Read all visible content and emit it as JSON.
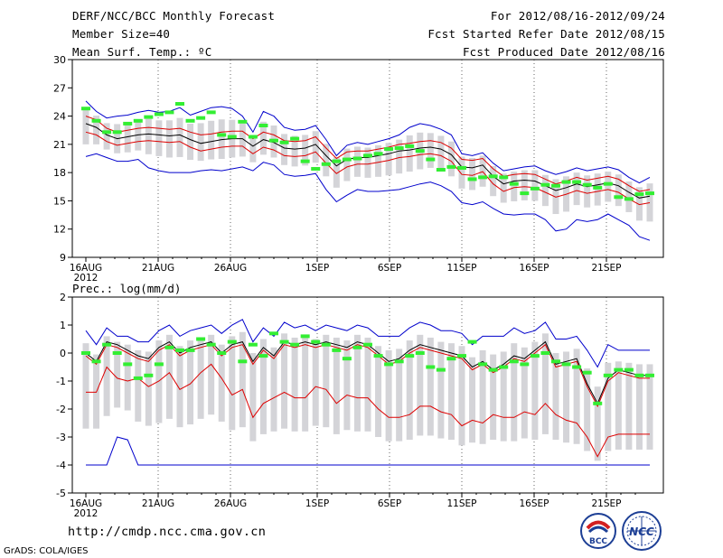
{
  "header": {
    "title": "DERF/NCC/BCC Monthly Forecast",
    "member_size": "Member Size=40",
    "variable": "Mean Surf. Temp.: ºC",
    "forecast_period": "For 2012/08/16-2012/09/24",
    "start_date": "Fcst Started Refer Date 2012/08/15",
    "produced_date": "Fcst Produced Date 2012/08/16"
  },
  "footer": {
    "url": "http://cmdp.ncc.cma.gov.cn",
    "credit": "GrADS: COLA/IGES",
    "logo_left_text": "BCC",
    "logo_right_text": "NCC"
  },
  "colors": {
    "mean_line": "#000000",
    "spread_line": "#dd0000",
    "range_line": "#0000cc",
    "member_box": "#d4d4d8",
    "marker": "#33ee33"
  },
  "chart_data": [
    {
      "type": "box",
      "title": "Mean Surf. Temp.: ºC",
      "x_tick_labels": [
        "16AUG",
        "21AUG",
        "26AUG",
        "1SEP",
        "6SEP",
        "11SEP",
        "16SEP",
        "21SEP"
      ],
      "x_tick_days": [
        0,
        5,
        10,
        16,
        21,
        26,
        31,
        36
      ],
      "x_year_label": "2012",
      "ylim": [
        9,
        30
      ],
      "y_ticks": [
        9,
        12,
        15,
        18,
        21,
        24,
        27,
        30
      ],
      "days": 39,
      "series": [
        {
          "name": "ensemble mean",
          "values": [
            23.2,
            22.8,
            22.0,
            21.6,
            21.8,
            22.0,
            22.1,
            22.0,
            21.9,
            22.0,
            21.5,
            21.1,
            21.3,
            21.5,
            21.6,
            21.6,
            20.8,
            21.5,
            21.2,
            20.6,
            20.5,
            20.6,
            21.0,
            19.8,
            18.7,
            19.4,
            19.6,
            19.6,
            19.8,
            20.0,
            20.3,
            20.4,
            20.6,
            20.7,
            20.5,
            19.9,
            18.6,
            18.5,
            18.8,
            17.6,
            16.8,
            17.1,
            17.2,
            17.1,
            16.6,
            16.1,
            16.4,
            16.8,
            16.5,
            16.7,
            16.9,
            16.6,
            15.9,
            15.3,
            15.5
          ]
        },
        {
          "name": "upper spread",
          "values": [
            24.0,
            23.6,
            22.7,
            22.3,
            22.5,
            22.7,
            22.8,
            22.7,
            22.6,
            22.7,
            22.3,
            22.0,
            22.1,
            22.3,
            22.4,
            22.4,
            21.6,
            22.3,
            22.0,
            21.4,
            21.3,
            21.4,
            21.8,
            20.6,
            19.5,
            20.2,
            20.3,
            20.3,
            20.5,
            20.7,
            21.0,
            21.1,
            21.3,
            21.4,
            21.2,
            20.6,
            19.4,
            19.3,
            19.5,
            18.4,
            17.6,
            17.8,
            17.9,
            17.8,
            17.3,
            16.8,
            17.1,
            17.5,
            17.2,
            17.4,
            17.6,
            17.3,
            16.6,
            16.0,
            16.2
          ]
        },
        {
          "name": "lower spread",
          "values": [
            22.3,
            22.0,
            21.3,
            20.9,
            21.1,
            21.3,
            21.4,
            21.3,
            21.2,
            21.3,
            20.7,
            20.3,
            20.5,
            20.7,
            20.8,
            20.8,
            20.0,
            20.7,
            20.4,
            19.8,
            19.7,
            19.8,
            20.2,
            19.0,
            17.9,
            18.6,
            18.9,
            18.9,
            19.1,
            19.3,
            19.6,
            19.7,
            19.9,
            20.0,
            19.8,
            19.2,
            17.8,
            17.7,
            18.1,
            16.8,
            16.0,
            16.4,
            16.5,
            16.4,
            15.9,
            15.4,
            15.7,
            16.1,
            15.8,
            16.0,
            16.2,
            15.9,
            15.2,
            14.6,
            14.8
          ]
        },
        {
          "name": "ensemble max",
          "values": [
            25.6,
            24.5,
            23.8,
            24.0,
            24.1,
            24.4,
            24.6,
            24.4,
            24.5,
            24.9,
            24.1,
            24.5,
            24.9,
            25.0,
            24.8,
            24.0,
            22.3,
            24.5,
            24.0,
            22.8,
            22.5,
            22.6,
            23.0,
            21.5,
            19.8,
            20.9,
            21.2,
            21.0,
            21.3,
            21.6,
            22.0,
            22.8,
            23.2,
            23.0,
            22.6,
            22.0,
            20.0,
            19.8,
            20.1,
            19.0,
            18.2,
            18.4,
            18.6,
            18.7,
            18.2,
            17.8,
            18.1,
            18.5,
            18.2,
            18.4,
            18.6,
            18.3,
            17.5,
            16.9,
            17.5
          ]
        },
        {
          "name": "ensemble min",
          "values": [
            19.7,
            20.0,
            19.6,
            19.2,
            19.2,
            19.4,
            18.5,
            18.2,
            18.0,
            18.0,
            18.0,
            18.2,
            18.3,
            18.2,
            18.4,
            18.6,
            18.2,
            19.1,
            18.8,
            17.8,
            17.6,
            17.7,
            17.9,
            16.2,
            14.9,
            15.6,
            16.2,
            16.0,
            16.0,
            16.1,
            16.2,
            16.5,
            16.8,
            17.0,
            16.6,
            16.0,
            14.8,
            14.6,
            14.9,
            14.2,
            13.6,
            13.5,
            13.6,
            13.6,
            13.0,
            11.8,
            12.0,
            13.0,
            12.8,
            13.0,
            13.6,
            13.0,
            12.4,
            11.2,
            10.8
          ]
        },
        {
          "name": "observed marker",
          "values": [
            24.8,
            23.5,
            22.3,
            22.3,
            23.2,
            23.5,
            23.9,
            24.2,
            24.4,
            25.3,
            23.5,
            23.8,
            24.4,
            22.0,
            21.8,
            23.4,
            21.8,
            23.0,
            21.4,
            21.2,
            21.6,
            19.2,
            18.4,
            18.9,
            19.2,
            19.4,
            19.5,
            19.8,
            20.0,
            20.5,
            20.6,
            20.8,
            20.3,
            19.4,
            18.3,
            18.6,
            18.5,
            17.3,
            17.5,
            17.6,
            17.5,
            16.8,
            15.8,
            16.3,
            16.7,
            16.6,
            17.0,
            17.0,
            16.7,
            16.4,
            16.8,
            15.4,
            15.2,
            15.7,
            15.8
          ]
        }
      ]
    },
    {
      "type": "box",
      "title": "Prec.: log(mm/d)",
      "x_tick_labels": [
        "16AUG",
        "21AUG",
        "26AUG",
        "1SEP",
        "6SEP",
        "11SEP",
        "16SEP",
        "21SEP"
      ],
      "x_tick_days": [
        0,
        5,
        10,
        16,
        21,
        26,
        31,
        36
      ],
      "x_year_label": "2012",
      "ylim": [
        -5,
        2
      ],
      "y_ticks": [
        -5,
        -4,
        -3,
        -2,
        -1,
        0,
        1,
        2
      ],
      "days": 39,
      "series": [
        {
          "name": "ensemble mean",
          "values": [
            0.0,
            -0.3,
            0.4,
            0.3,
            0.1,
            -0.1,
            -0.2,
            0.2,
            0.4,
            0.0,
            0.2,
            0.3,
            0.4,
            0.0,
            0.3,
            0.4,
            -0.3,
            0.2,
            -0.1,
            0.4,
            0.3,
            0.4,
            0.3,
            0.4,
            0.3,
            0.2,
            0.4,
            0.3,
            0.0,
            -0.3,
            -0.2,
            0.1,
            0.3,
            0.2,
            0.1,
            0.0,
            -0.1,
            -0.5,
            -0.3,
            -0.6,
            -0.4,
            -0.1,
            -0.2,
            0.1,
            0.4,
            -0.4,
            -0.3,
            -0.2,
            -1.1,
            -1.8,
            -0.9,
            -0.6,
            -0.7,
            -0.8,
            -0.8
          ]
        },
        {
          "name": "upper spread",
          "values": [
            -0.1,
            -0.4,
            0.3,
            0.2,
            0.0,
            -0.2,
            -0.3,
            0.1,
            0.3,
            -0.1,
            0.1,
            0.2,
            0.3,
            -0.1,
            0.2,
            0.3,
            -0.4,
            0.1,
            -0.2,
            0.3,
            0.2,
            0.3,
            0.2,
            0.3,
            0.2,
            0.1,
            0.3,
            0.2,
            -0.1,
            -0.4,
            -0.3,
            0.0,
            0.2,
            0.1,
            0.0,
            -0.1,
            -0.2,
            -0.6,
            -0.4,
            -0.7,
            -0.5,
            -0.2,
            -0.3,
            0.0,
            0.3,
            -0.5,
            -0.4,
            -0.3,
            -1.2,
            -1.9,
            -1.0,
            -0.7,
            -0.8,
            -0.9,
            -0.9
          ]
        },
        {
          "name": "lower spread",
          "values": [
            -1.4,
            -1.4,
            -0.5,
            -0.9,
            -1.0,
            -0.9,
            -1.2,
            -1.0,
            -0.7,
            -1.3,
            -1.1,
            -0.7,
            -0.4,
            -0.9,
            -1.5,
            -1.3,
            -2.3,
            -1.8,
            -1.6,
            -1.4,
            -1.6,
            -1.6,
            -1.2,
            -1.3,
            -1.8,
            -1.5,
            -1.6,
            -1.6,
            -2.0,
            -2.3,
            -2.3,
            -2.2,
            -1.9,
            -1.9,
            -2.1,
            -2.2,
            -2.6,
            -2.4,
            -2.5,
            -2.2,
            -2.3,
            -2.3,
            -2.1,
            -2.2,
            -1.8,
            -2.2,
            -2.4,
            -2.5,
            -3.0,
            -3.7,
            -3.0,
            -2.9,
            -2.9,
            -2.9,
            -2.9
          ]
        },
        {
          "name": "ensemble max",
          "values": [
            0.8,
            0.3,
            0.9,
            0.6,
            0.6,
            0.4,
            0.4,
            0.8,
            1.0,
            0.6,
            0.8,
            0.9,
            1.0,
            0.7,
            1.0,
            1.2,
            0.4,
            0.9,
            0.6,
            1.1,
            0.9,
            1.0,
            0.8,
            1.0,
            0.9,
            0.8,
            1.0,
            0.9,
            0.6,
            0.6,
            0.6,
            0.9,
            1.1,
            1.0,
            0.8,
            0.8,
            0.7,
            0.3,
            0.6,
            0.6,
            0.6,
            0.9,
            0.7,
            0.8,
            1.1,
            0.5,
            0.5,
            0.6,
            0.1,
            -0.5,
            0.3,
            0.1,
            0.1,
            0.1,
            0.1
          ]
        },
        {
          "name": "ensemble min",
          "values": [
            -4.0,
            -4.0,
            -4.0,
            -3.0,
            -3.1,
            -4.0,
            -4.0,
            -4.0,
            -4.0,
            -4.0,
            -4.0,
            -4.0,
            -4.0,
            -4.0,
            -4.0,
            -4.0,
            -4.0,
            -4.0,
            -4.0,
            -4.0,
            -4.0,
            -4.0,
            -4.0,
            -4.0,
            -4.0,
            -4.0,
            -4.0,
            -4.0,
            -4.0,
            -4.0,
            -4.0,
            -4.0,
            -4.0,
            -4.0,
            -4.0,
            -4.0,
            -4.0,
            -4.0,
            -4.0,
            -4.0,
            -4.0,
            -4.0,
            -4.0,
            -4.0,
            -4.0,
            -4.0,
            -4.0,
            -4.0,
            -4.0,
            -4.0,
            -4.0,
            -4.0,
            -4.0,
            -4.0,
            -4.0
          ]
        },
        {
          "name": "observed marker",
          "values": [
            0.0,
            -0.3,
            0.3,
            0.0,
            -0.4,
            -0.9,
            -0.8,
            -0.4,
            0.2,
            0.1,
            0.1,
            0.5,
            0.3,
            0.0,
            0.4,
            -0.3,
            0.3,
            -0.1,
            0.7,
            0.4,
            0.3,
            0.6,
            0.4,
            0.3,
            0.1,
            -0.2,
            0.2,
            0.3,
            -0.1,
            -0.4,
            -0.3,
            -0.1,
            0.0,
            -0.5,
            -0.6,
            -0.2,
            -0.1,
            0.4,
            -0.4,
            -0.6,
            -0.5,
            -0.3,
            -0.4,
            -0.1,
            0.0,
            -0.3,
            -0.4,
            -0.5,
            -0.7,
            -1.8,
            -0.8,
            -0.6,
            -0.6,
            -0.8,
            -0.8
          ]
        }
      ]
    }
  ]
}
